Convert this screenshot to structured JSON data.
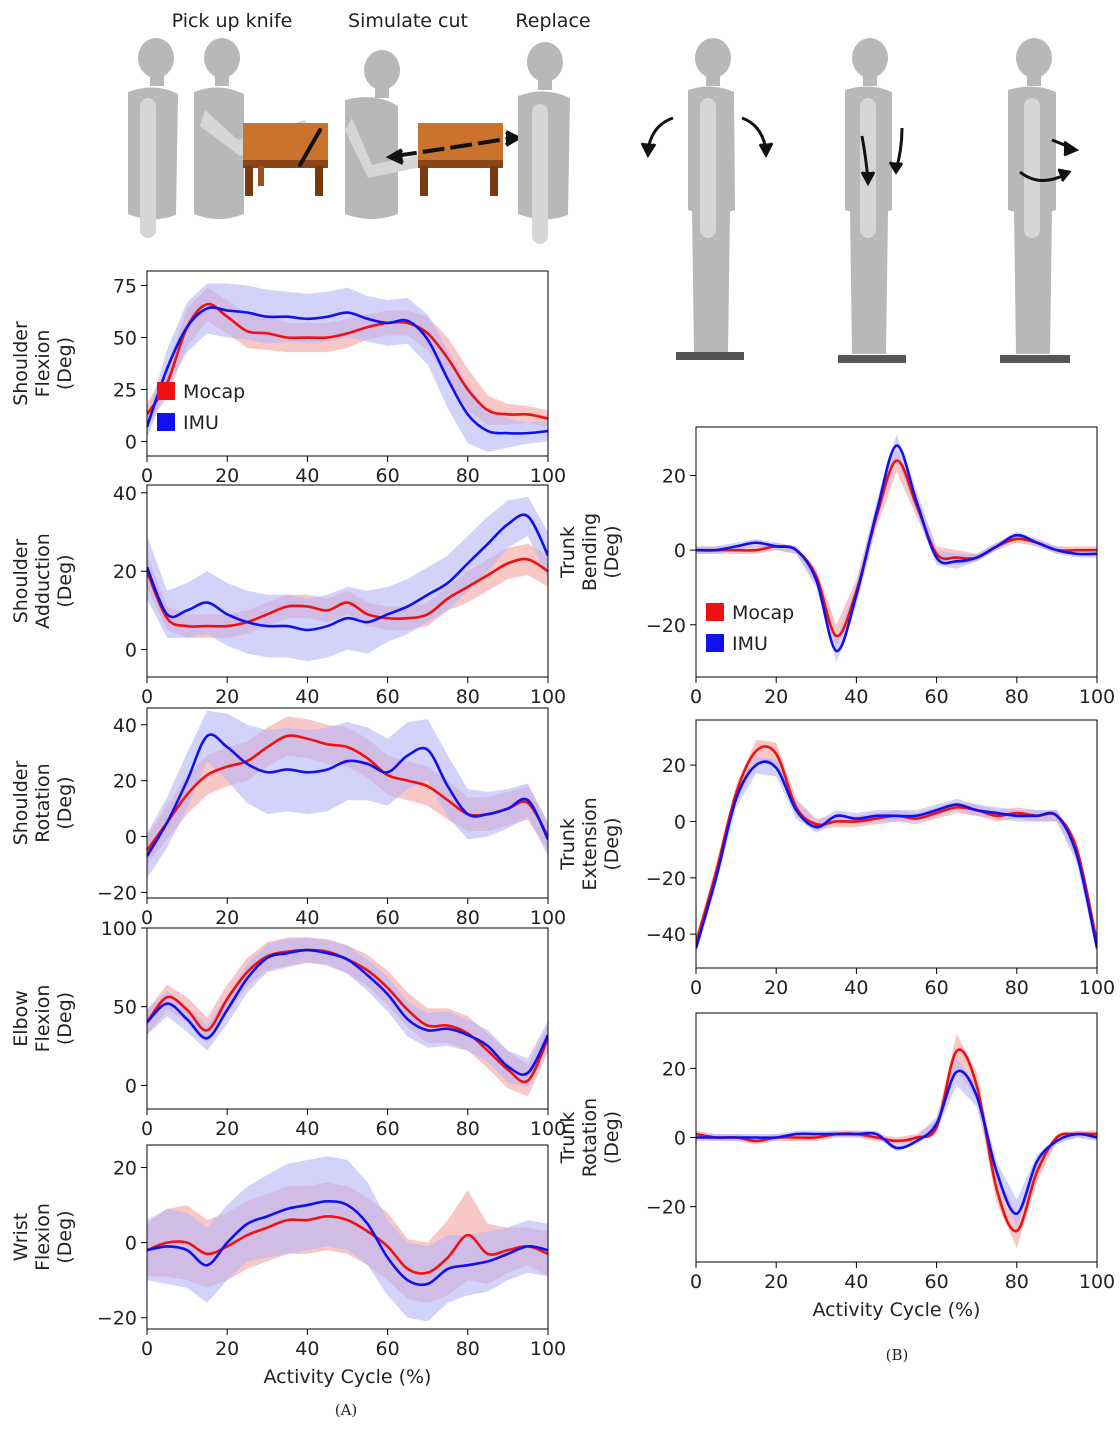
{
  "illustration": {
    "labels": [
      "Pick up knife",
      "Simulate cut",
      "Replace"
    ]
  },
  "panel_labels": [
    "(A)",
    "(B)"
  ],
  "colors": {
    "mocap": "#ee1111",
    "imu": "#1111ee",
    "mocap_band": "#f8b4b4",
    "imu_band": "#b4b4f8",
    "figure_fill": "#b8b8b8",
    "figure_light": "#d6d6d6",
    "table": "#c9732c",
    "table_dark": "#7a3a10"
  },
  "chart_data": [
    {
      "type": "line",
      "id": "shoulder-flexion",
      "ylabel_lines": [
        "Shoulder",
        "Flexion",
        "(Deg)"
      ],
      "xlabel": "",
      "xlim": [
        0,
        100
      ],
      "ylim": [
        -7,
        82
      ],
      "xticks": [
        0,
        20,
        40,
        60,
        80,
        100
      ],
      "yticks": [
        0,
        25,
        50,
        75
      ],
      "grid": false,
      "legend": "lower-left",
      "x": [
        0,
        5,
        10,
        15,
        20,
        25,
        30,
        35,
        40,
        45,
        50,
        55,
        60,
        65,
        70,
        75,
        80,
        85,
        90,
        95,
        100
      ],
      "series": [
        {
          "name": "Mocap",
          "values": [
            13,
            28,
            55,
            66,
            60,
            53,
            52,
            50,
            50,
            50,
            52,
            55,
            57,
            57,
            52,
            40,
            25,
            15,
            13,
            13,
            11
          ],
          "spread": [
            5,
            7,
            9,
            8,
            8,
            8,
            8,
            7,
            7,
            7,
            7,
            6,
            6,
            6,
            8,
            10,
            10,
            7,
            5,
            4,
            4
          ]
        },
        {
          "name": "IMU",
          "values": [
            7,
            35,
            55,
            64,
            63,
            62,
            60,
            60,
            59,
            60,
            62,
            59,
            57,
            58,
            49,
            30,
            13,
            5,
            4,
            4,
            5
          ],
          "spread": [
            5,
            9,
            12,
            12,
            13,
            13,
            13,
            12,
            12,
            12,
            12,
            11,
            11,
            11,
            12,
            14,
            14,
            10,
            7,
            5,
            5
          ]
        }
      ]
    },
    {
      "type": "line",
      "id": "shoulder-adduction",
      "ylabel_lines": [
        "Shoulder",
        "Adduction",
        "(Deg)"
      ],
      "xlabel": "",
      "xlim": [
        0,
        100
      ],
      "ylim": [
        -7,
        42
      ],
      "xticks": [
        0,
        20,
        40,
        60,
        80,
        100
      ],
      "yticks": [
        0,
        20,
        40
      ],
      "grid": false,
      "legend": "none",
      "x": [
        0,
        5,
        10,
        15,
        20,
        25,
        30,
        35,
        40,
        45,
        50,
        55,
        60,
        65,
        70,
        75,
        80,
        85,
        90,
        95,
        100
      ],
      "series": [
        {
          "name": "Mocap",
          "values": [
            20,
            8,
            6,
            6,
            6,
            7,
            9,
            11,
            11,
            10,
            12,
            9,
            8,
            8,
            9,
            13,
            16,
            19,
            22,
            23,
            20
          ],
          "spread": [
            4,
            3,
            3,
            3,
            3,
            3,
            3,
            3,
            3,
            3,
            3,
            3,
            3,
            3,
            3,
            3,
            4,
            4,
            4,
            4,
            4
          ]
        },
        {
          "name": "IMU",
          "values": [
            21,
            9,
            10,
            12,
            9,
            7,
            6,
            6,
            5,
            6,
            8,
            7,
            9,
            11,
            14,
            17,
            22,
            27,
            32,
            34,
            24
          ],
          "spread": [
            8,
            6,
            7,
            8,
            8,
            8,
            8,
            8,
            8,
            8,
            8,
            8,
            7,
            7,
            7,
            7,
            7,
            7,
            6,
            5,
            6
          ]
        }
      ]
    },
    {
      "type": "line",
      "id": "shoulder-rotation",
      "ylabel_lines": [
        "Shoulder",
        "Rotation",
        "(Deg)"
      ],
      "xlabel": "",
      "xlim": [
        0,
        100
      ],
      "ylim": [
        -22,
        46
      ],
      "xticks": [
        0,
        20,
        40,
        60,
        80,
        100
      ],
      "yticks": [
        -20,
        0,
        20,
        40
      ],
      "grid": false,
      "legend": "none",
      "x": [
        0,
        5,
        10,
        15,
        20,
        25,
        30,
        35,
        40,
        45,
        50,
        55,
        60,
        65,
        70,
        75,
        80,
        85,
        90,
        95,
        100
      ],
      "series": [
        {
          "name": "Mocap",
          "values": [
            -5,
            5,
            15,
            22,
            25,
            27,
            32,
            36,
            35,
            33,
            32,
            28,
            22,
            20,
            18,
            13,
            8,
            8,
            10,
            12,
            0
          ],
          "spread": [
            5,
            6,
            7,
            7,
            7,
            7,
            7,
            7,
            7,
            7,
            7,
            7,
            7,
            7,
            7,
            7,
            6,
            6,
            6,
            6,
            5
          ]
        },
        {
          "name": "IMU",
          "values": [
            -7,
            5,
            20,
            36,
            32,
            26,
            23,
            24,
            23,
            24,
            27,
            26,
            23,
            29,
            31,
            18,
            8,
            8,
            10,
            13,
            -1
          ],
          "spread": [
            8,
            9,
            10,
            9,
            12,
            14,
            15,
            15,
            15,
            15,
            14,
            13,
            12,
            12,
            11,
            11,
            9,
            8,
            7,
            6,
            6
          ]
        }
      ]
    },
    {
      "type": "line",
      "id": "elbow-flexion",
      "ylabel_lines": [
        "Elbow",
        "Flexion",
        "(Deg)"
      ],
      "xlabel": "",
      "xlim": [
        0,
        100
      ],
      "ylim": [
        -15,
        100
      ],
      "xticks": [
        0,
        20,
        40,
        60,
        80,
        100
      ],
      "yticks": [
        0,
        50,
        100
      ],
      "grid": false,
      "legend": "none",
      "x": [
        0,
        5,
        10,
        15,
        20,
        25,
        30,
        35,
        40,
        45,
        50,
        55,
        60,
        65,
        70,
        75,
        80,
        85,
        90,
        95,
        100
      ],
      "series": [
        {
          "name": "Mocap",
          "values": [
            40,
            56,
            48,
            35,
            55,
            72,
            82,
            85,
            86,
            85,
            80,
            73,
            62,
            48,
            38,
            38,
            33,
            22,
            10,
            3,
            30
          ],
          "spread": [
            8,
            8,
            8,
            8,
            9,
            9,
            9,
            9,
            8,
            8,
            9,
            10,
            11,
            11,
            11,
            11,
            11,
            11,
            12,
            10,
            9
          ]
        },
        {
          "name": "IMU",
          "values": [
            40,
            52,
            42,
            30,
            48,
            68,
            81,
            84,
            86,
            84,
            80,
            70,
            58,
            42,
            35,
            36,
            32,
            25,
            12,
            8,
            32
          ],
          "spread": [
            8,
            8,
            8,
            8,
            9,
            9,
            9,
            9,
            8,
            8,
            9,
            10,
            11,
            11,
            11,
            11,
            10,
            10,
            10,
            9,
            9
          ]
        }
      ]
    },
    {
      "type": "line",
      "id": "wrist-flexion",
      "ylabel_lines": [
        "Wrist",
        "Flexion",
        "(Deg)"
      ],
      "xlabel": "Activity Cycle (%)",
      "xlim": [
        0,
        100
      ],
      "ylim": [
        -23,
        26
      ],
      "xticks": [
        0,
        20,
        40,
        60,
        80,
        100
      ],
      "yticks": [
        -20,
        0,
        20
      ],
      "grid": false,
      "legend": "none",
      "x": [
        0,
        5,
        10,
        15,
        20,
        25,
        30,
        35,
        40,
        45,
        50,
        55,
        60,
        65,
        70,
        75,
        80,
        85,
        90,
        95,
        100
      ],
      "series": [
        {
          "name": "Mocap",
          "values": [
            -2,
            0,
            0,
            -3,
            -1,
            2,
            4,
            6,
            6,
            7,
            6,
            3,
            -1,
            -7,
            -8,
            -4,
            2,
            -3,
            -2,
            -1,
            -3
          ],
          "spread": [
            7,
            9,
            10,
            9,
            9,
            9,
            9,
            9,
            9,
            9,
            9,
            9,
            9,
            8,
            8,
            10,
            12,
            8,
            6,
            5,
            6
          ]
        },
        {
          "name": "IMU",
          "values": [
            -2,
            -1,
            -2,
            -6,
            0,
            5,
            7,
            9,
            10,
            11,
            10,
            5,
            -4,
            -10,
            -11,
            -7,
            -6,
            -5,
            -3,
            -1,
            -2
          ],
          "spread": [
            8,
            10,
            10,
            10,
            10,
            10,
            11,
            12,
            12,
            12,
            12,
            11,
            10,
            10,
            10,
            9,
            8,
            8,
            7,
            7,
            7
          ]
        }
      ]
    },
    {
      "type": "line",
      "id": "trunk-bending",
      "ylabel_lines": [
        "Trunk",
        "Bending",
        "(Deg)"
      ],
      "xlabel": "",
      "xlim": [
        0,
        100
      ],
      "ylim": [
        -34,
        33
      ],
      "xticks": [
        0,
        20,
        40,
        60,
        80,
        100
      ],
      "yticks": [
        -20,
        0,
        20
      ],
      "grid": false,
      "legend": "lower-left",
      "x": [
        0,
        5,
        10,
        15,
        20,
        25,
        30,
        35,
        40,
        45,
        50,
        55,
        60,
        65,
        70,
        75,
        80,
        85,
        90,
        95,
        100
      ],
      "series": [
        {
          "name": "Mocap",
          "values": [
            0,
            0,
            0,
            0,
            1,
            0,
            -7,
            -23,
            -11,
            9,
            24,
            12,
            -1,
            -2,
            -2,
            1,
            3,
            2,
            0,
            0,
            0
          ],
          "spread": [
            1,
            1,
            1,
            1,
            1,
            1,
            2,
            3,
            3,
            3,
            3,
            3,
            2,
            2,
            1,
            1,
            1,
            1,
            1,
            1,
            1
          ]
        },
        {
          "name": "IMU",
          "values": [
            0,
            0,
            1,
            2,
            1,
            0,
            -8,
            -27,
            -12,
            10,
            28,
            13,
            -2,
            -3,
            -2,
            1,
            4,
            2,
            0,
            -1,
            -1
          ],
          "spread": [
            1,
            1,
            1,
            1,
            1,
            1,
            2,
            3,
            3,
            3,
            3,
            3,
            2,
            2,
            1,
            1,
            1,
            1,
            1,
            1,
            1
          ]
        }
      ]
    },
    {
      "type": "line",
      "id": "trunk-extension",
      "ylabel_lines": [
        "Trunk",
        "Extension",
        "(Deg)"
      ],
      "xlabel": "",
      "xlim": [
        0,
        100
      ],
      "ylim": [
        -52,
        36
      ],
      "xticks": [
        0,
        20,
        40,
        60,
        80,
        100
      ],
      "yticks": [
        -40,
        -20,
        0,
        20
      ],
      "grid": false,
      "legend": "none",
      "x": [
        0,
        5,
        10,
        15,
        20,
        25,
        30,
        35,
        40,
        45,
        50,
        55,
        60,
        65,
        70,
        75,
        80,
        85,
        90,
        95,
        100
      ],
      "series": [
        {
          "name": "Mocap",
          "values": [
            -43,
            -18,
            10,
            25,
            24,
            5,
            -1,
            0,
            0,
            1,
            2,
            1,
            3,
            5,
            4,
            2,
            3,
            2,
            2,
            -10,
            -43
          ],
          "spread": [
            2,
            3,
            3,
            4,
            4,
            3,
            2,
            2,
            2,
            2,
            2,
            2,
            2,
            2,
            2,
            2,
            2,
            2,
            2,
            3,
            2
          ]
        },
        {
          "name": "IMU",
          "values": [
            -45,
            -20,
            8,
            20,
            19,
            4,
            -2,
            2,
            1,
            2,
            2,
            2,
            4,
            6,
            4,
            3,
            2,
            2,
            2,
            -12,
            -45
          ],
          "spread": [
            2,
            3,
            3,
            3,
            3,
            3,
            2,
            2,
            2,
            2,
            2,
            2,
            2,
            2,
            2,
            2,
            2,
            2,
            2,
            3,
            2
          ]
        }
      ]
    },
    {
      "type": "line",
      "id": "trunk-rotation",
      "ylabel_lines": [
        "Trunk",
        "Rotation",
        "(Deg)"
      ],
      "xlabel": "Activity Cycle (%)",
      "xlim": [
        0,
        100
      ],
      "ylim": [
        -36,
        36
      ],
      "xticks": [
        0,
        20,
        40,
        60,
        80,
        100
      ],
      "yticks": [
        -20,
        0,
        20
      ],
      "grid": false,
      "legend": "none",
      "x": [
        0,
        5,
        10,
        15,
        20,
        25,
        30,
        35,
        40,
        45,
        50,
        55,
        60,
        65,
        70,
        75,
        80,
        85,
        90,
        95,
        100
      ],
      "series": [
        {
          "name": "Mocap",
          "values": [
            1,
            0,
            0,
            -1,
            0,
            0,
            0,
            1,
            1,
            0,
            -1,
            0,
            3,
            25,
            15,
            -15,
            -27,
            -10,
            0,
            1,
            1
          ],
          "spread": [
            1,
            1,
            1,
            1,
            1,
            1,
            1,
            1,
            1,
            1,
            1,
            1,
            2,
            5,
            4,
            4,
            5,
            3,
            1,
            1,
            1
          ]
        },
        {
          "name": "IMU",
          "values": [
            0,
            0,
            0,
            0,
            0,
            1,
            1,
            1,
            1,
            1,
            -3,
            -1,
            4,
            19,
            12,
            -10,
            -22,
            -7,
            -1,
            1,
            0
          ],
          "spread": [
            1,
            1,
            1,
            1,
            1,
            1,
            1,
            1,
            1,
            1,
            1,
            1,
            2,
            4,
            3,
            3,
            4,
            2,
            1,
            1,
            1
          ]
        }
      ]
    }
  ]
}
